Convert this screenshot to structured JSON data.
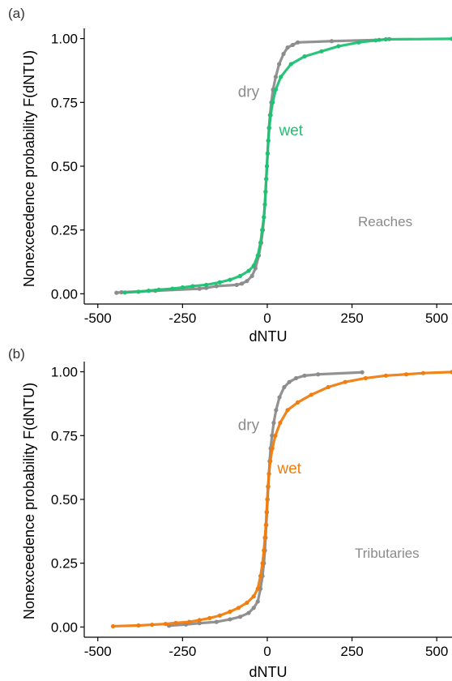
{
  "chart_data": [
    {
      "type": "scatter",
      "panel_label": "(a)",
      "xlabel": "dNTU",
      "ylabel": "Nonexceedence probability F(dNTU)",
      "xlim": [
        -540,
        545
      ],
      "ylim": [
        -0.04,
        1.04
      ],
      "xticks": [
        "-500",
        "-250",
        "0",
        "250",
        "500"
      ],
      "xtick_values": [
        -500,
        -250,
        0,
        250,
        500
      ],
      "yticks": [
        "0.00",
        "0.25",
        "0.50",
        "0.75",
        "1.00"
      ],
      "ytick_values": [
        0,
        0.25,
        0.5,
        0.75,
        1.0
      ],
      "grid": false,
      "note": "Reaches",
      "series": [
        {
          "name": "dry",
          "color": "#8c8c8c",
          "points": [
            [
              -445,
              0.004
            ],
            [
              -430,
              0.006
            ],
            [
              -330,
              0.012
            ],
            [
              -200,
              0.02
            ],
            [
              -180,
              0.023
            ],
            [
              -150,
              0.03
            ],
            [
              -90,
              0.035
            ],
            [
              -75,
              0.04
            ],
            [
              -60,
              0.05
            ],
            [
              -45,
              0.07
            ],
            [
              -35,
              0.1
            ],
            [
              -25,
              0.15
            ],
            [
              -18,
              0.2
            ],
            [
              -13,
              0.25
            ],
            [
              -10,
              0.3
            ],
            [
              -7,
              0.35
            ],
            [
              -5,
              0.4
            ],
            [
              -3,
              0.45
            ],
            [
              -1,
              0.5
            ],
            [
              1,
              0.55
            ],
            [
              3,
              0.6
            ],
            [
              5,
              0.65
            ],
            [
              8,
              0.7
            ],
            [
              12,
              0.75
            ],
            [
              17,
              0.8
            ],
            [
              25,
              0.85
            ],
            [
              35,
              0.9
            ],
            [
              48,
              0.94
            ],
            [
              60,
              0.965
            ],
            [
              75,
              0.975
            ],
            [
              90,
              0.985
            ],
            [
              190,
              0.99
            ],
            [
              330,
              0.995
            ],
            [
              360,
              0.998
            ]
          ]
        },
        {
          "name": "wet",
          "color": "#1fc173",
          "points": [
            [
              -420,
              0.005
            ],
            [
              -380,
              0.008
            ],
            [
              -350,
              0.012
            ],
            [
              -320,
              0.016
            ],
            [
              -280,
              0.02
            ],
            [
              -250,
              0.025
            ],
            [
              -220,
              0.03
            ],
            [
              -180,
              0.035
            ],
            [
              -140,
              0.045
            ],
            [
              -110,
              0.055
            ],
            [
              -80,
              0.07
            ],
            [
              -55,
              0.09
            ],
            [
              -40,
              0.11
            ],
            [
              -28,
              0.15
            ],
            [
              -20,
              0.2
            ],
            [
              -15,
              0.25
            ],
            [
              -10,
              0.3
            ],
            [
              -7,
              0.35
            ],
            [
              -5,
              0.4
            ],
            [
              -3,
              0.45
            ],
            [
              -1,
              0.5
            ],
            [
              1,
              0.55
            ],
            [
              3,
              0.6
            ],
            [
              6,
              0.65
            ],
            [
              10,
              0.7
            ],
            [
              16,
              0.75
            ],
            [
              25,
              0.8
            ],
            [
              40,
              0.85
            ],
            [
              70,
              0.9
            ],
            [
              110,
              0.93
            ],
            [
              160,
              0.95
            ],
            [
              210,
              0.97
            ],
            [
              270,
              0.985
            ],
            [
              320,
              0.993
            ],
            [
              350,
              0.997
            ],
            [
              545,
              0.999
            ]
          ]
        }
      ],
      "annotations": [
        {
          "text": "dry",
          "color": "#8c8c8c",
          "x": -55,
          "y": 0.79
        },
        {
          "text": "wet",
          "color": "#1fc173",
          "x": 70,
          "y": 0.64
        }
      ]
    },
    {
      "type": "scatter",
      "panel_label": "(b)",
      "xlabel": "dNTU",
      "ylabel": "Nonexceedence probability F(dNTU)",
      "xlim": [
        -540,
        545
      ],
      "ylim": [
        -0.04,
        1.04
      ],
      "xticks": [
        "-500",
        "-250",
        "0",
        "250",
        "500"
      ],
      "xtick_values": [
        -500,
        -250,
        0,
        250,
        500
      ],
      "yticks": [
        "0.00",
        "0.25",
        "0.50",
        "0.75",
        "1.00"
      ],
      "ytick_values": [
        0,
        0.25,
        0.5,
        0.75,
        1.0
      ],
      "grid": false,
      "note": "Tributaries",
      "series": [
        {
          "name": "dry",
          "color": "#8c8c8c",
          "points": [
            [
              -290,
              0.005
            ],
            [
              -240,
              0.01
            ],
            [
              -200,
              0.015
            ],
            [
              -150,
              0.02
            ],
            [
              -110,
              0.03
            ],
            [
              -80,
              0.04
            ],
            [
              -55,
              0.055
            ],
            [
              -40,
              0.075
            ],
            [
              -28,
              0.1
            ],
            [
              -20,
              0.15
            ],
            [
              -14,
              0.2
            ],
            [
              -10,
              0.25
            ],
            [
              -7,
              0.3
            ],
            [
              -5,
              0.35
            ],
            [
              -3,
              0.4
            ],
            [
              -1,
              0.45
            ],
            [
              1,
              0.5
            ],
            [
              3,
              0.55
            ],
            [
              5,
              0.6
            ],
            [
              7,
              0.65
            ],
            [
              10,
              0.7
            ],
            [
              14,
              0.75
            ],
            [
              19,
              0.8
            ],
            [
              26,
              0.85
            ],
            [
              36,
              0.9
            ],
            [
              50,
              0.94
            ],
            [
              65,
              0.96
            ],
            [
              85,
              0.975
            ],
            [
              110,
              0.985
            ],
            [
              150,
              0.99
            ],
            [
              280,
              0.998
            ]
          ]
        },
        {
          "name": "wet",
          "color": "#f07d0e",
          "points": [
            [
              -455,
              0.003
            ],
            [
              -380,
              0.006
            ],
            [
              -340,
              0.009
            ],
            [
              -300,
              0.012
            ],
            [
              -270,
              0.016
            ],
            [
              -230,
              0.02
            ],
            [
              -200,
              0.027
            ],
            [
              -170,
              0.035
            ],
            [
              -140,
              0.045
            ],
            [
              -110,
              0.06
            ],
            [
              -85,
              0.075
            ],
            [
              -60,
              0.095
            ],
            [
              -40,
              0.12
            ],
            [
              -28,
              0.15
            ],
            [
              -20,
              0.2
            ],
            [
              -14,
              0.25
            ],
            [
              -10,
              0.3
            ],
            [
              -7,
              0.35
            ],
            [
              -4,
              0.4
            ],
            [
              -2,
              0.45
            ],
            [
              0,
              0.5
            ],
            [
              2,
              0.55
            ],
            [
              5,
              0.6
            ],
            [
              9,
              0.65
            ],
            [
              15,
              0.7
            ],
            [
              24,
              0.75
            ],
            [
              38,
              0.8
            ],
            [
              60,
              0.85
            ],
            [
              90,
              0.88
            ],
            [
              130,
              0.91
            ],
            [
              180,
              0.94
            ],
            [
              230,
              0.96
            ],
            [
              290,
              0.975
            ],
            [
              350,
              0.985
            ],
            [
              410,
              0.99
            ],
            [
              460,
              0.995
            ],
            [
              545,
              0.999
            ]
          ]
        }
      ],
      "annotations": [
        {
          "text": "dry",
          "color": "#8c8c8c",
          "x": -55,
          "y": 0.79
        },
        {
          "text": "wet",
          "color": "#f07d0e",
          "x": 65,
          "y": 0.62
        }
      ]
    }
  ]
}
